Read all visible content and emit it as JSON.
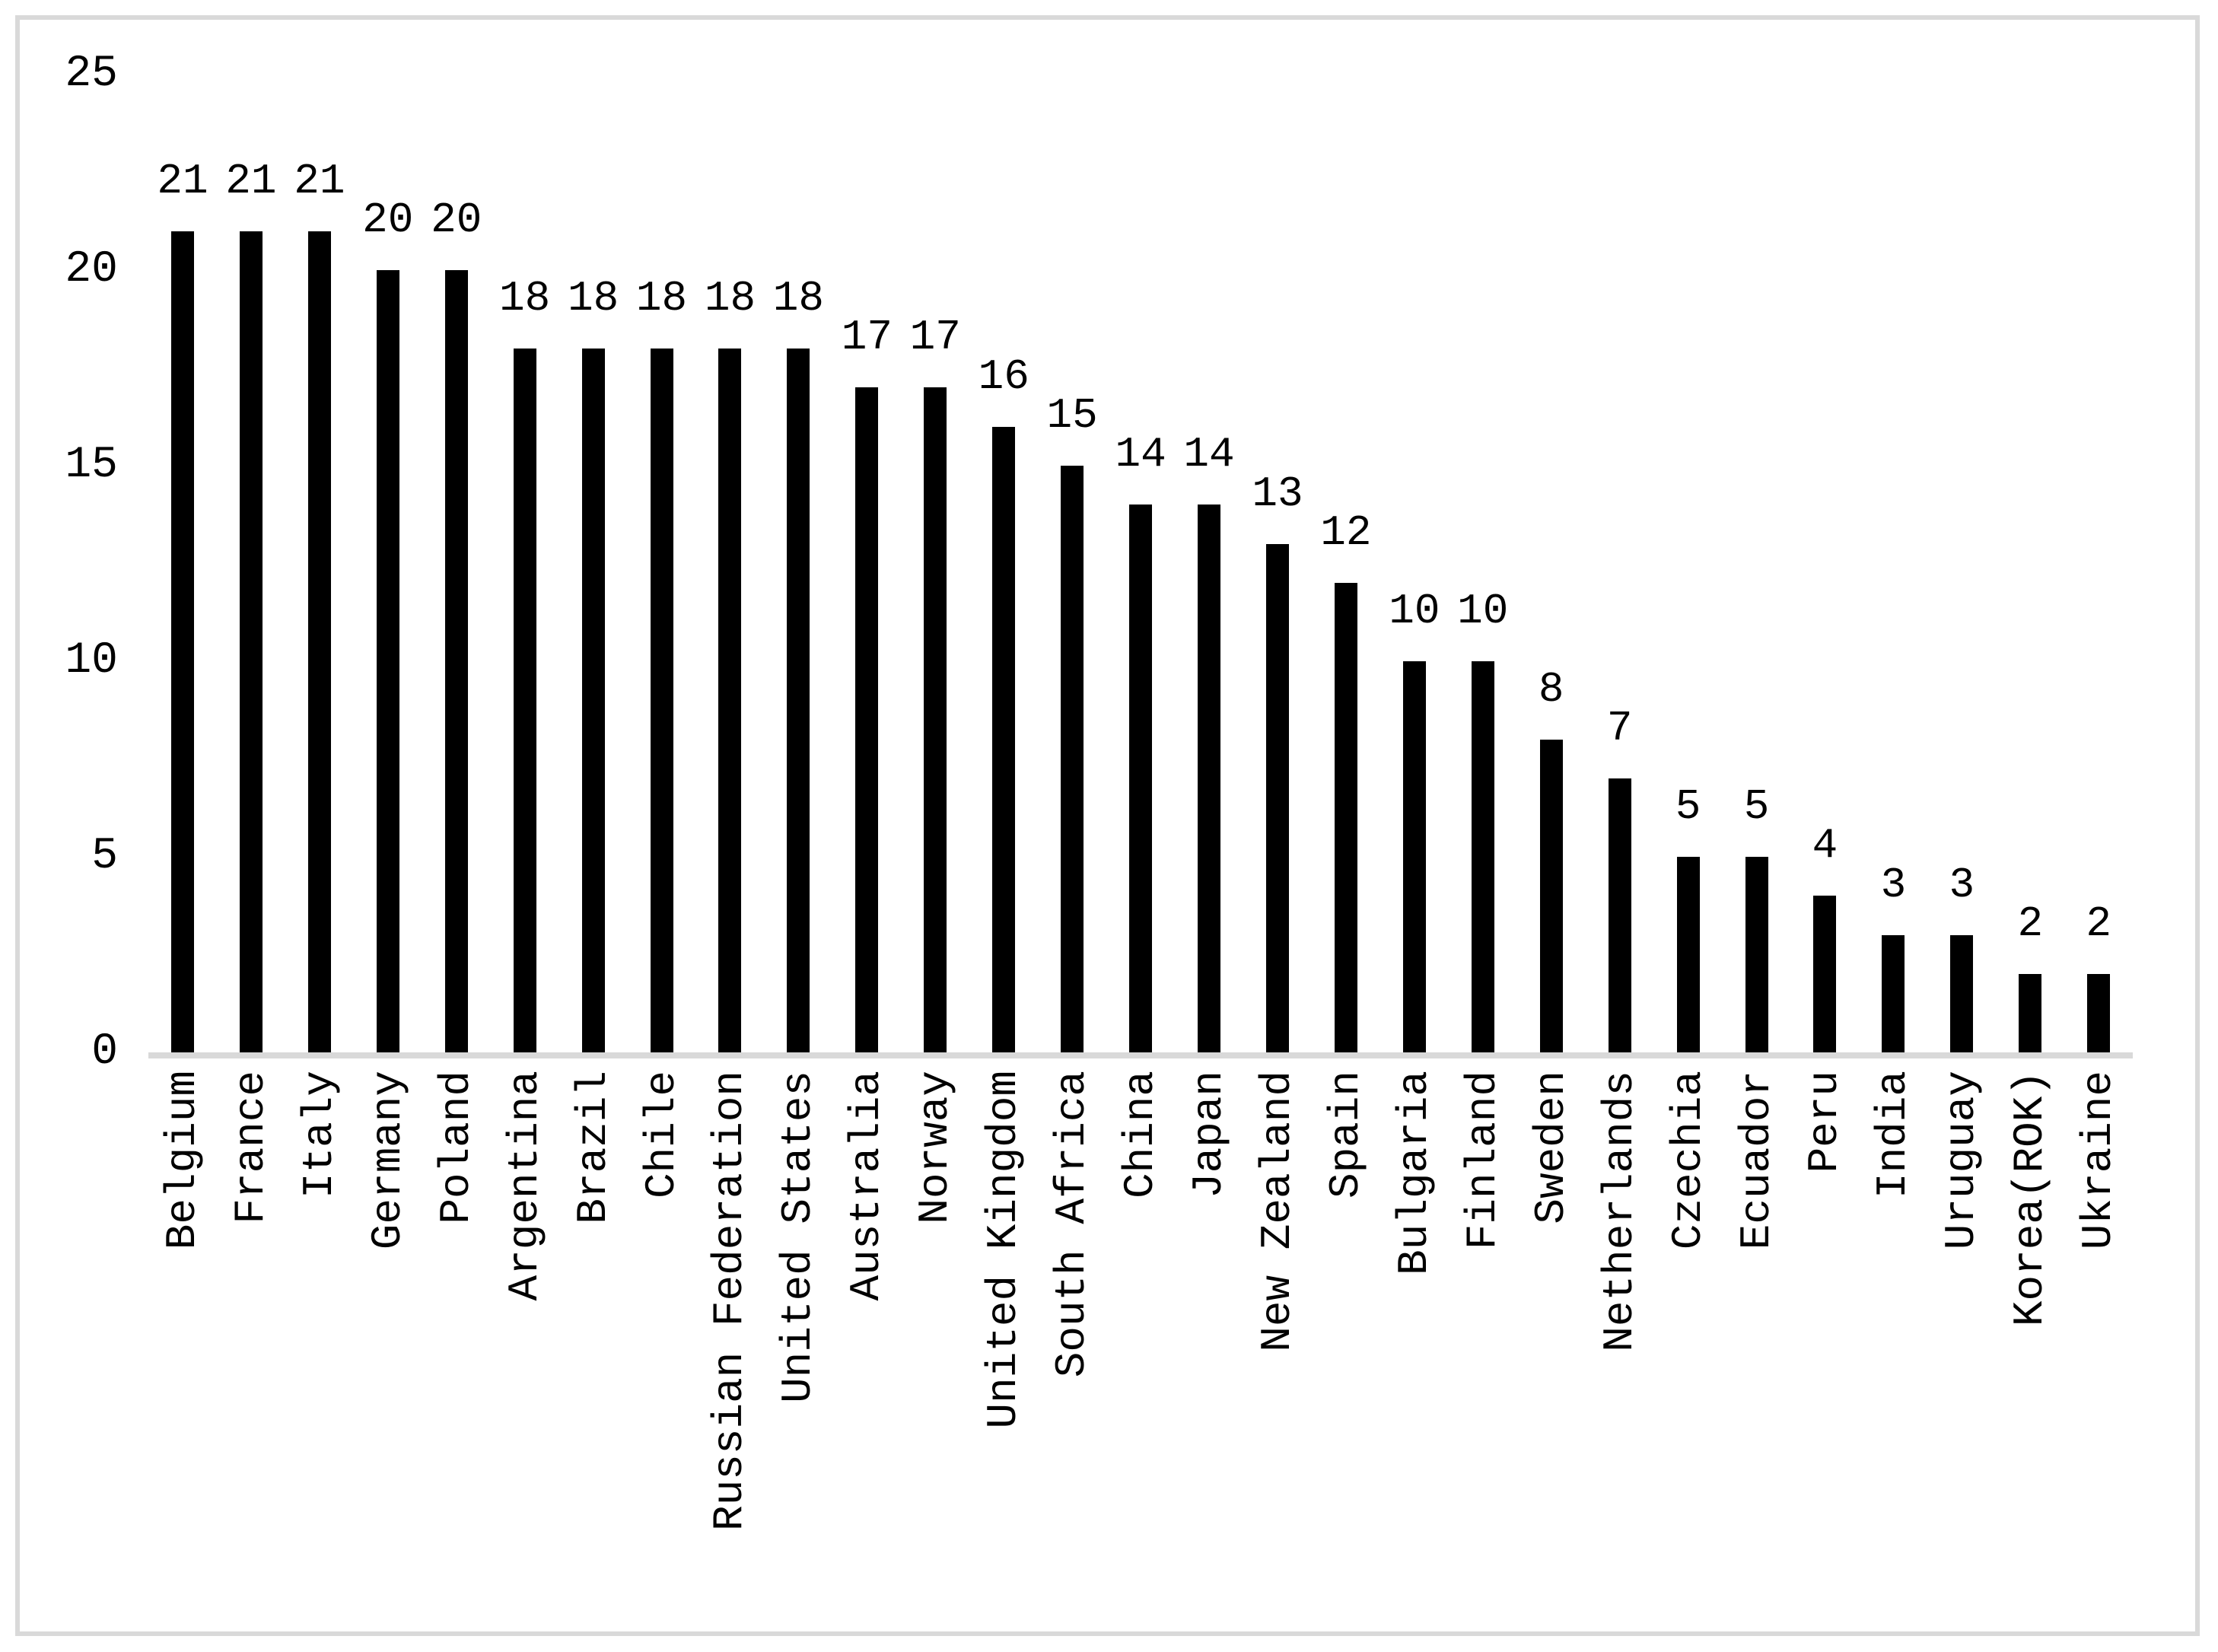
{
  "chart_data": {
    "type": "bar",
    "title": "",
    "xlabel": "",
    "ylabel": "",
    "categories": [
      "Belgium",
      "France",
      "Italy",
      "Germany",
      "Poland",
      "Argentina",
      "Brazil",
      "Chile",
      "Russian Federation",
      "United States",
      "Australia",
      "Norway",
      "United Kingdom",
      "South Africa",
      "China",
      "Japan",
      "New Zealand",
      "Spain",
      "Bulgaria",
      "Finland",
      "Sweden",
      "Netherlands",
      "Czechia",
      "Ecuador",
      "Peru",
      "India",
      "Uruguay",
      "Korea(ROK)",
      "Ukraine"
    ],
    "values": [
      21,
      21,
      21,
      20,
      20,
      18,
      18,
      18,
      18,
      18,
      17,
      17,
      16,
      15,
      14,
      14,
      13,
      12,
      10,
      10,
      8,
      7,
      5,
      5,
      4,
      3,
      3,
      2,
      2
    ],
    "value_labels_shown": true,
    "yticks": [
      0,
      5,
      10,
      15,
      20,
      25
    ],
    "ylim": [
      0,
      25
    ],
    "grid": "off",
    "legend": "none",
    "x_tick_rotation_degrees": 90,
    "colors": {
      "bar": "#000000",
      "axis_line": "#d9d9d9",
      "border": "#d9d9d9",
      "text": "#000000",
      "background": "#ffffff"
    }
  }
}
